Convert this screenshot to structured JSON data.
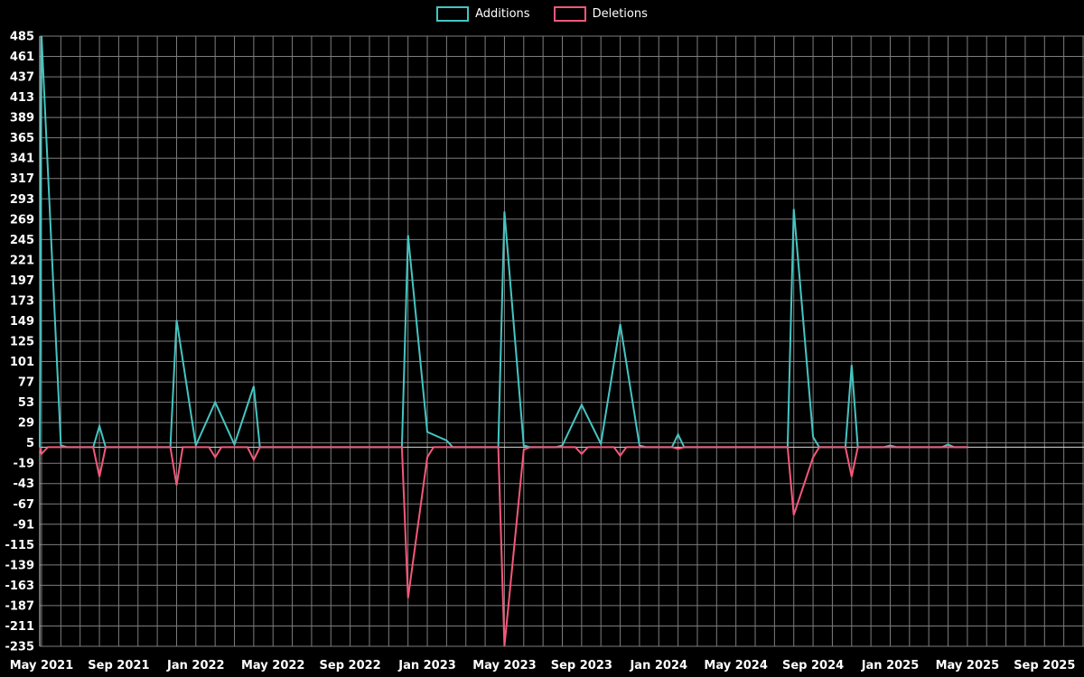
{
  "legend": {
    "items": [
      {
        "label": "Additions",
        "color": "#45c5c1"
      },
      {
        "label": "Deletions",
        "color": "#f4587a"
      }
    ]
  },
  "colors": {
    "background": "#000000",
    "grid": "#7d7d7d",
    "axis": "#d9d9d9",
    "text": "#ffffff",
    "additions": "#45c5c1",
    "deletions": "#f4587a"
  },
  "chart_data": {
    "type": "line",
    "title": "",
    "xlabel": "",
    "ylabel": "",
    "ylim": [
      -235,
      485
    ],
    "y_ticks": [
      485,
      461,
      437,
      413,
      389,
      365,
      341,
      317,
      293,
      269,
      245,
      221,
      197,
      173,
      149,
      125,
      101,
      77,
      53,
      29,
      5,
      -19,
      -43,
      -67,
      -91,
      -115,
      -139,
      -163,
      -187,
      -211,
      -235
    ],
    "x_tick_labels": [
      "May 2021",
      "Sep 2021",
      "Jan 2022",
      "May 2022",
      "Sep 2022",
      "Jan 2023",
      "May 2023",
      "Sep 2023",
      "Jan 2024",
      "May 2024",
      "Sep 2024",
      "Jan 2025",
      "May 2025",
      "Sep 2025"
    ],
    "x_axis_months_total": 54,
    "grid": true,
    "legend_position": "top-center",
    "categories": [
      "May 2021",
      "Jun 2021",
      "Jul 2021",
      "Aug 2021",
      "Sep 2021",
      "Oct 2021",
      "Nov 2021",
      "Dec 2021",
      "Jan 2022",
      "Feb 2022",
      "Mar 2022",
      "Apr 2022",
      "May 2022",
      "Jun 2022",
      "Jul 2022",
      "Aug 2022",
      "Sep 2022",
      "Oct 2022",
      "Nov 2022",
      "Dec 2022",
      "Jan 2023",
      "Feb 2023",
      "Mar 2023",
      "Apr 2023",
      "May 2023",
      "Jun 2023",
      "Jul 2023",
      "Aug 2023",
      "Sep 2023",
      "Oct 2023",
      "Nov 2023",
      "Dec 2023",
      "Jan 2024",
      "Feb 2024",
      "Mar 2024",
      "Apr 2024",
      "May 2024",
      "Jun 2024",
      "Jul 2024",
      "Aug 2024",
      "Sep 2024",
      "Oct 2024",
      "Nov 2024",
      "Dec 2024",
      "Jan 2025",
      "Feb 2025",
      "Mar 2025",
      "Apr 2025",
      "May 2025"
    ],
    "series": [
      {
        "name": "Additions",
        "color": "#45c5c1",
        "values": [
          485,
          2,
          0,
          25,
          0,
          0,
          0,
          150,
          2,
          53,
          3,
          72,
          0,
          0,
          0,
          0,
          0,
          0,
          0,
          250,
          18,
          8,
          0,
          0,
          278,
          2,
          0,
          2,
          50,
          4,
          145,
          2,
          0,
          15,
          0,
          0,
          0,
          0,
          0,
          281,
          12,
          0,
          97,
          0,
          2,
          0,
          0,
          3,
          0
        ]
      },
      {
        "name": "Deletions",
        "color": "#f4587a",
        "values": [
          -8,
          0,
          0,
          -35,
          0,
          0,
          0,
          -45,
          0,
          -12,
          0,
          -15,
          0,
          0,
          0,
          0,
          0,
          0,
          0,
          -178,
          -12,
          0,
          0,
          0,
          -235,
          -3,
          0,
          0,
          -8,
          0,
          -10,
          0,
          0,
          -2,
          0,
          0,
          0,
          0,
          0,
          -80,
          -12,
          0,
          -35,
          0,
          0,
          0,
          0,
          0,
          0
        ]
      }
    ]
  }
}
